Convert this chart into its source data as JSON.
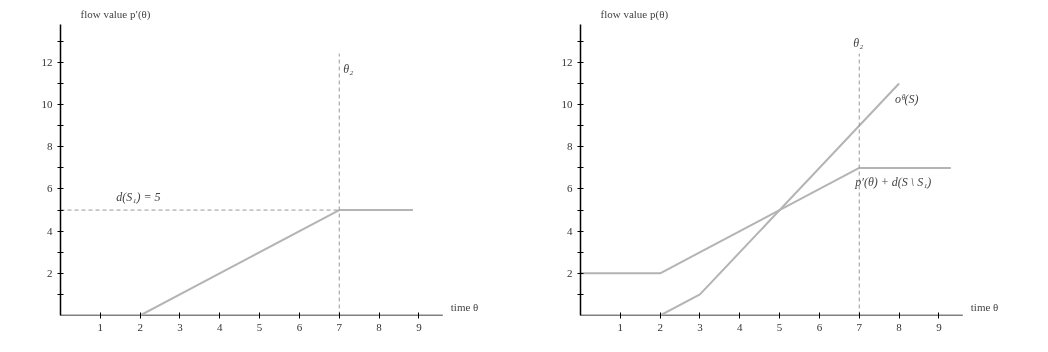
{
  "chart_data": [
    {
      "type": "line",
      "xlabel": "time θ",
      "ylabel": "flow value p′(θ)",
      "xlim": [
        0,
        9.6
      ],
      "ylim": [
        0,
        13.8
      ],
      "xticks": [
        1,
        2,
        3,
        4,
        5,
        6,
        7,
        8,
        9
      ],
      "yticks": [
        {
          "value": 1,
          "label": null
        },
        2,
        {
          "value": 3,
          "label": null
        },
        4,
        {
          "value": 5,
          "label": null
        },
        6,
        {
          "value": 7,
          "label": null
        },
        8,
        {
          "value": 9,
          "label": null
        },
        10,
        {
          "value": 11,
          "label": null
        },
        12,
        {
          "value": 13,
          "label": null
        }
      ],
      "series": [
        {
          "color": "#b4b4b4",
          "x": [
            2,
            7,
            8.85
          ],
          "values": [
            0,
            5,
            5
          ]
        }
      ],
      "ref_lines": [
        {
          "axis": "y",
          "value": 5,
          "label": "d(S₁) = 5",
          "color": "#999999",
          "line_style": "dashed"
        },
        {
          "axis": "x",
          "value": 7,
          "label": "θ₂",
          "color": "#999999",
          "line_style": "dashed"
        }
      ],
      "grid": false
    },
    {
      "type": "line",
      "xlabel": "time θ",
      "ylabel": "flow value p(θ)",
      "xlim": [
        0,
        9.6
      ],
      "ylim": [
        0,
        13.8
      ],
      "xticks": [
        1,
        2,
        3,
        4,
        5,
        6,
        7,
        8,
        9
      ],
      "yticks": [
        {
          "value": 1,
          "label": null
        },
        2,
        {
          "value": 3,
          "label": null
        },
        4,
        {
          "value": 5,
          "label": null
        },
        6,
        {
          "value": 7,
          "label": null
        },
        8,
        {
          "value": 9,
          "label": null
        },
        10,
        {
          "value": 11,
          "label": null
        },
        12,
        {
          "value": 13,
          "label": null
        }
      ],
      "series": [
        {
          "color": "#b4b4b4",
          "x": [
            0,
            2,
            7,
            9.3
          ],
          "values": [
            2,
            2,
            7,
            7
          ]
        },
        {
          "color": "#b4b4b4",
          "x": [
            2,
            3,
            8
          ],
          "values": [
            0,
            1,
            11
          ]
        }
      ],
      "annotations": [
        {
          "text": "oᶿ(S)",
          "x": 8,
          "y": 11
        },
        {
          "text": "p′(θ) + d(S \\ S₁)",
          "x": 7,
          "y": 6
        }
      ],
      "ref_lines": [
        {
          "axis": "x",
          "value": 7,
          "label": "θ₂",
          "color": "#999999",
          "line_style": "dashed"
        }
      ],
      "grid": false
    }
  ]
}
